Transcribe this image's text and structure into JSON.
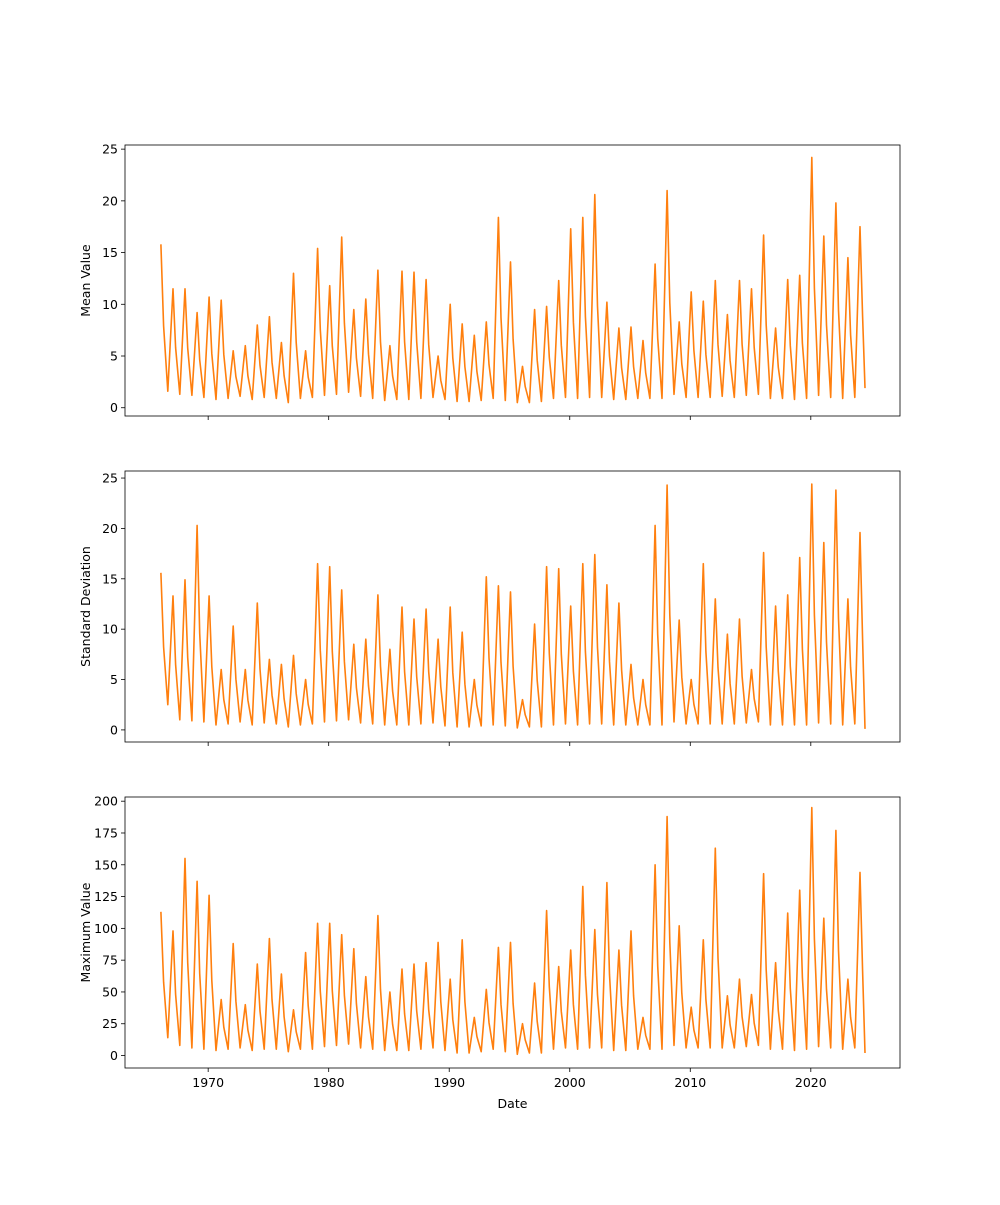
{
  "chart_data": {
    "type": "line",
    "xlabel": "Date",
    "xlim": [
      1963.1,
      2027.4
    ],
    "xticks": [
      1970,
      1980,
      1990,
      2000,
      2010,
      2020
    ],
    "color": "#ff7f0e",
    "years": [
      1966,
      1967,
      1968,
      1969,
      1970,
      1971,
      1972,
      1973,
      1974,
      1975,
      1976,
      1977,
      1978,
      1979,
      1980,
      1981,
      1982,
      1983,
      1984,
      1985,
      1986,
      1987,
      1988,
      1989,
      1990,
      1991,
      1992,
      1993,
      1994,
      1995,
      1996,
      1997,
      1998,
      1999,
      2000,
      2001,
      2002,
      2003,
      2004,
      2005,
      2006,
      2007,
      2008,
      2009,
      2010,
      2011,
      2012,
      2013,
      2014,
      2015,
      2016,
      2017,
      2018,
      2019,
      2020,
      2021,
      2022,
      2023,
      2024
    ],
    "note_series": "per year: annual peak and annual trough values",
    "subplots": [
      {
        "ylabel": "Mean Value",
        "ylim": [
          -0.8,
          25.4
        ],
        "yticks": [
          0,
          5,
          10,
          15,
          20,
          25
        ],
        "peaks": [
          15.8,
          11.5,
          11.5,
          9.2,
          10.7,
          10.4,
          5.5,
          6.0,
          8.0,
          8.8,
          6.3,
          13.0,
          5.5,
          15.4,
          11.8,
          16.5,
          9.5,
          10.5,
          13.3,
          6.0,
          13.2,
          13.1,
          12.4,
          5.0,
          10.0,
          8.1,
          7.0,
          8.3,
          18.4,
          14.1,
          4.0,
          9.5,
          9.8,
          12.3,
          17.3,
          18.4,
          20.6,
          10.2,
          7.7,
          7.8,
          6.5,
          13.9,
          21.0,
          8.3,
          11.2,
          10.3,
          12.3,
          9.0,
          12.3,
          11.5,
          16.7,
          7.7,
          12.4,
          12.8,
          24.2,
          16.6,
          19.8,
          14.5,
          17.5
        ],
        "troughs": [
          1.6,
          1.3,
          1.2,
          1.0,
          0.8,
          0.9,
          1.1,
          0.8,
          1.0,
          0.9,
          0.5,
          0.9,
          1.0,
          1.2,
          1.3,
          1.5,
          1.1,
          0.9,
          0.7,
          0.8,
          0.8,
          0.9,
          1.0,
          0.8,
          0.6,
          0.6,
          0.7,
          0.9,
          0.7,
          0.5,
          0.5,
          0.6,
          0.9,
          1.0,
          0.9,
          1.0,
          1.0,
          0.8,
          0.8,
          0.9,
          0.9,
          0.9,
          1.3,
          1.0,
          1.0,
          1.0,
          1.1,
          1.0,
          1.2,
          1.3,
          0.9,
          0.9,
          0.8,
          0.9,
          1.2,
          1.0,
          0.9,
          1.0,
          1.9
        ]
      },
      {
        "ylabel": "Standard Deviation",
        "ylim": [
          -1.2,
          25.7
        ],
        "yticks": [
          0,
          5,
          10,
          15,
          20,
          25
        ],
        "peaks": [
          15.6,
          13.3,
          14.9,
          20.3,
          13.3,
          6.0,
          10.3,
          6.0,
          12.6,
          7.0,
          6.5,
          7.4,
          5.0,
          16.5,
          16.2,
          13.9,
          8.5,
          9.0,
          13.4,
          8.0,
          12.2,
          11.0,
          12.0,
          9.0,
          12.2,
          9.7,
          5.0,
          15.2,
          14.3,
          13.7,
          3.0,
          10.5,
          16.2,
          16.0,
          12.3,
          16.5,
          17.4,
          14.4,
          12.6,
          6.5,
          5.0,
          20.3,
          24.3,
          10.9,
          5.0,
          16.5,
          13.0,
          9.5,
          11.0,
          6.0,
          17.6,
          12.3,
          13.4,
          17.1,
          24.4,
          18.6,
          23.8,
          13.0,
          19.6
        ],
        "troughs": [
          2.5,
          1.0,
          0.9,
          0.8,
          0.5,
          0.6,
          0.8,
          0.5,
          0.7,
          0.6,
          0.3,
          0.5,
          0.6,
          0.8,
          0.9,
          1.0,
          0.7,
          0.6,
          0.5,
          0.5,
          0.5,
          0.6,
          0.7,
          0.4,
          0.3,
          0.3,
          0.4,
          0.5,
          0.4,
          0.2,
          0.3,
          0.3,
          0.5,
          0.6,
          0.5,
          0.6,
          0.6,
          0.5,
          0.5,
          0.5,
          0.5,
          0.5,
          0.8,
          0.6,
          0.6,
          0.6,
          0.6,
          0.6,
          0.7,
          0.8,
          0.5,
          0.5,
          0.5,
          0.5,
          0.7,
          0.6,
          0.5,
          0.6,
          0.1
        ]
      },
      {
        "ylabel": "Maximum Value",
        "ylim": [
          -9.8,
          203.3
        ],
        "yticks": [
          0,
          25,
          50,
          75,
          100,
          125,
          150,
          175,
          200
        ],
        "peaks": [
          113,
          98,
          155,
          137,
          126,
          44,
          88,
          40,
          72,
          92,
          64,
          36,
          81,
          104,
          104,
          95,
          84,
          62,
          110,
          50,
          68,
          72,
          73,
          89,
          60,
          91,
          30,
          52,
          85,
          89,
          25,
          57,
          114,
          70,
          83,
          133,
          99,
          136,
          83,
          98,
          30,
          150,
          188,
          102,
          38,
          91,
          163,
          47,
          60,
          48,
          143,
          73,
          112,
          130,
          195,
          108,
          177,
          60,
          144
        ],
        "troughs": [
          14,
          8,
          6,
          5,
          4,
          5,
          6,
          4,
          5,
          5,
          3,
          5,
          5,
          7,
          8,
          9,
          6,
          5,
          4,
          4,
          4,
          5,
          6,
          4,
          2,
          2,
          3,
          5,
          3,
          1,
          2,
          2,
          5,
          6,
          5,
          6,
          6,
          4,
          4,
          5,
          5,
          5,
          8,
          6,
          6,
          6,
          6,
          6,
          7,
          8,
          5,
          5,
          4,
          5,
          7,
          6,
          5,
          6,
          2
        ]
      }
    ]
  }
}
